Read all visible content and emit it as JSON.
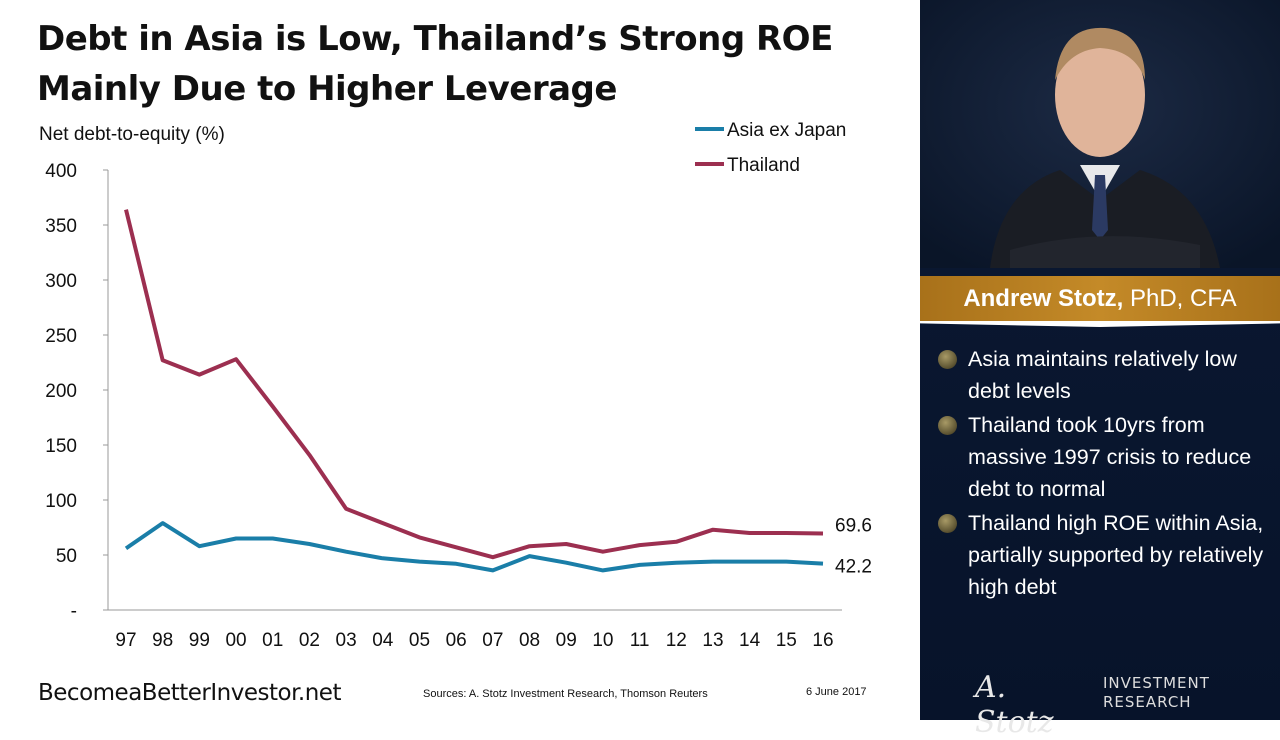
{
  "title": "Debt in Asia is Low, Thailand’s Strong ROE Mainly Due to Higher Leverage",
  "chart_data": {
    "type": "line",
    "ylabel": "Net debt-to-equity (%)",
    "ylim": [
      0,
      400
    ],
    "yticks": [
      0,
      50,
      100,
      150,
      200,
      250,
      300,
      350,
      400
    ],
    "ytick_labels": [
      "-",
      "50",
      "100",
      "150",
      "200",
      "250",
      "300",
      "350",
      "400"
    ],
    "categories": [
      "97",
      "98",
      "99",
      "00",
      "01",
      "02",
      "03",
      "04",
      "05",
      "06",
      "07",
      "08",
      "09",
      "10",
      "11",
      "12",
      "13",
      "14",
      "15",
      "16"
    ],
    "legend_position": "top-right",
    "grid": false,
    "series": [
      {
        "name": "Asia ex Japan",
        "color": "#1a7ea8",
        "end_label": "42.2",
        "values": [
          56,
          79,
          58,
          65,
          65,
          60,
          53,
          47,
          44,
          42,
          36,
          49,
          43,
          36,
          41,
          43,
          44,
          44,
          44,
          42.2
        ]
      },
      {
        "name": "Thailand",
        "color": "#9c2f50",
        "end_label": "69.6",
        "values": [
          364,
          227,
          214,
          228,
          185,
          141,
          92,
          79,
          66,
          57,
          48,
          58,
          60,
          53,
          59,
          62,
          73,
          70,
          70,
          69.6
        ]
      }
    ]
  },
  "footer": {
    "brand": "BecomeaBetterInvestor.net",
    "sources": "Sources: A. Stotz Investment Research, Thomson Reuters",
    "date": "6 June 2017"
  },
  "panel": {
    "name": "Andrew Stotz,",
    "credentials": " PhD, CFA",
    "bullets": [
      "Asia maintains relatively low debt levels",
      "Thailand took 10yrs from massive 1997 crisis to reduce debt to normal",
      "Thailand high ROE within Asia, partially supported by relatively high debt"
    ],
    "logo_signature": "A. Stotz",
    "logo_line1": "INVESTMENT",
    "logo_line2": "RESEARCH",
    "accent_color": "#b87d22"
  }
}
